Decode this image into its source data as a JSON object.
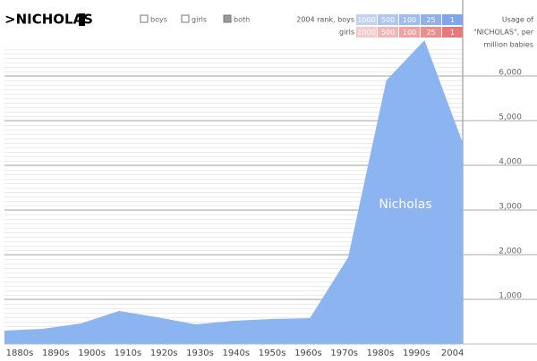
{
  "header": {
    "name": ">NICHOLAS",
    "filters": [
      "boys",
      "girls",
      "both"
    ],
    "rank_label_boys": "2004 rank, boys",
    "rank_label_girls": "girls",
    "ranks_boys": [
      1000,
      500,
      100,
      25,
      1
    ],
    "ranks_girls": [
      1000,
      500,
      100,
      25,
      1
    ],
    "usage_label": [
      "Usage of",
      "\"NICHOLAS\", per",
      "million babies"
    ]
  },
  "chart_data": {
    "type": "area",
    "categories": [
      "1880s",
      "1890s",
      "1900s",
      "1910s",
      "1920s",
      "1930s",
      "1940s",
      "1950s",
      "1960s",
      "1970s",
      "1980s",
      "1990s",
      "2004"
    ],
    "series": [
      {
        "name": "Nicholas",
        "color": "#8cb4f0",
        "values": [
          300,
          340,
          460,
          740,
          600,
          440,
          520,
          560,
          580,
          1940,
          5900,
          6800,
          4500
        ]
      }
    ],
    "ylim": [
      0,
      7000
    ],
    "yticks": [
      {
        "value": 1000,
        "label": "1,000"
      },
      {
        "value": 2000,
        "label": "2,000"
      },
      {
        "value": 3000,
        "label": "3,000"
      },
      {
        "value": 4000,
        "label": "4,000"
      },
      {
        "value": 5000,
        "label": "5,000"
      },
      {
        "value": 6000,
        "label": "6,000"
      }
    ]
  }
}
